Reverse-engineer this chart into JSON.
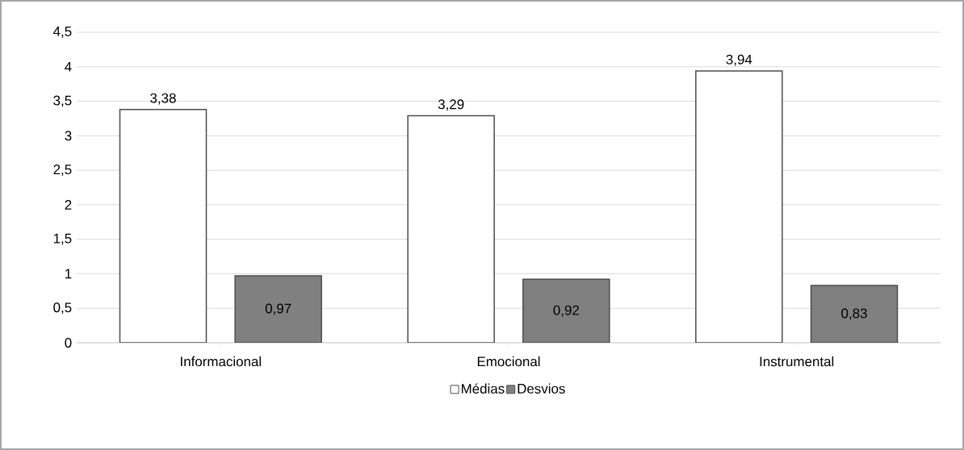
{
  "chart_data": {
    "type": "bar",
    "categories": [
      "Informacional",
      "Emocional",
      "Instrumental"
    ],
    "series": [
      {
        "name": "Médias",
        "color": "#ffffff",
        "values": [
          3.38,
          3.29,
          3.94
        ],
        "value_labels": [
          "3,38",
          "3,29",
          "3,94"
        ]
      },
      {
        "name": "Desvios",
        "color": "#808080",
        "values": [
          0.97,
          0.92,
          0.83
        ],
        "value_labels": [
          "0,97",
          "0,92",
          "0,83"
        ]
      }
    ],
    "ylim": [
      0,
      4.5
    ],
    "yticks": [
      0,
      {
        "value": 0.5,
        "label": "0,5"
      },
      1,
      {
        "value": 1.5,
        "label": "1,5"
      },
      2,
      {
        "value": 2.5,
        "label": "2,5"
      },
      3,
      {
        "value": 3.5,
        "label": "3,5"
      },
      4,
      {
        "value": 4.5,
        "label": "4,5"
      }
    ],
    "grid": "y",
    "legend": "bottom"
  }
}
